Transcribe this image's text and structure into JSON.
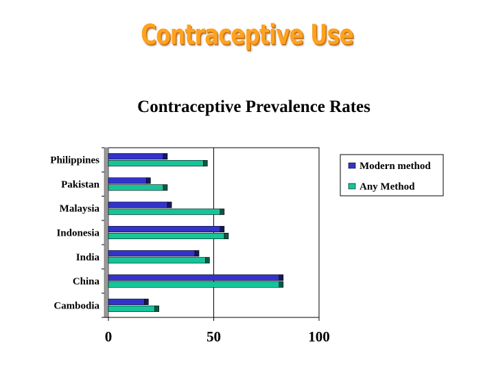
{
  "slide": {
    "title": "Contraceptive Use"
  },
  "chart_data": {
    "type": "bar",
    "orientation": "horizontal",
    "title": "Contraceptive Prevalence Rates",
    "xlabel": "",
    "ylabel": "",
    "categories": [
      "Philippines",
      "Pakistan",
      "Malaysia",
      "Indonesia",
      "India",
      "China",
      "Cambodia"
    ],
    "series": [
      {
        "name": "Modern method",
        "values": [
          28,
          20,
          30,
          55,
          43,
          83,
          19
        ],
        "color": "#3333cc"
      },
      {
        "name": "Any Method",
        "values": [
          47,
          28,
          55,
          57,
          48,
          83,
          24
        ],
        "color": "#17c49a"
      }
    ],
    "xlim": [
      0,
      100
    ],
    "xticks": [
      0,
      50,
      100
    ],
    "grid": {
      "vertical_major": true
    },
    "legend": {
      "position": "top-right"
    }
  }
}
